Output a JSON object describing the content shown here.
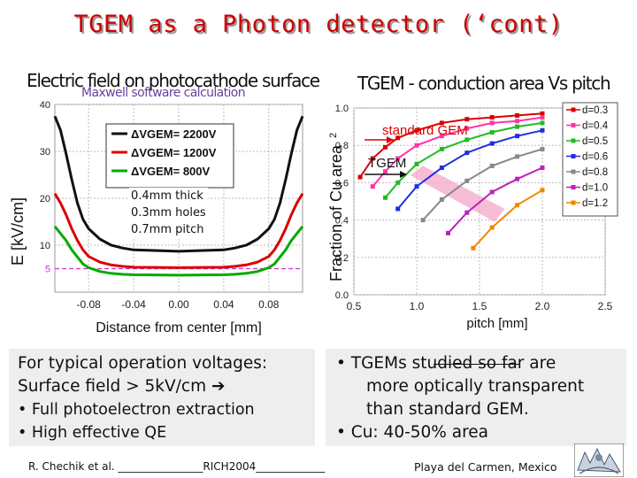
{
  "slide": {
    "title": "TGEM as a Photon detector (‘cont)"
  },
  "left_panel": {
    "title": "Electric field on photocathode surface",
    "subtitle": "Maxwell software calculation",
    "geometry_note": [
      "0.4mm thick",
      "0.3mm holes",
      "0.7mm pitch"
    ],
    "y_marker_label": "5",
    "rotated_ylabel": "E [kV/cm]"
  },
  "right_panel": {
    "title": "TGEM - conduction area Vs pitch",
    "rotated_ylabel": "Fraction of Cu area",
    "exponent_label": "2",
    "annotation_standard": "standard GEM",
    "annotation_tgem": "TGEM"
  },
  "chart_data": [
    {
      "type": "line",
      "title": "Electric field on photocathode surface",
      "xlabel": "Distance from center [mm]",
      "ylabel": "",
      "xlim": [
        -0.11,
        0.11
      ],
      "ylim": [
        0,
        40
      ],
      "xticks": [
        -0.08,
        -0.04,
        0.0,
        0.04,
        0.08
      ],
      "yticks": [
        10,
        20,
        30,
        40
      ],
      "grid": true,
      "legend_position": "top-center",
      "x": [
        -0.11,
        -0.105,
        -0.1,
        -0.095,
        -0.09,
        -0.085,
        -0.08,
        -0.07,
        -0.06,
        -0.05,
        -0.04,
        0.0,
        0.04,
        0.05,
        0.06,
        0.07,
        0.08,
        0.085,
        0.09,
        0.095,
        0.1,
        0.105,
        0.11
      ],
      "series": [
        {
          "name": "ΔVGEM= 2200V",
          "color": "#111111",
          "values": [
            37.5,
            34.5,
            29.5,
            24.0,
            19.0,
            15.5,
            13.5,
            11.3,
            10.0,
            9.4,
            9.0,
            8.7,
            9.0,
            9.4,
            10.0,
            11.3,
            13.5,
            15.5,
            19.0,
            24.0,
            29.5,
            34.5,
            37.5
          ]
        },
        {
          "name": "ΔVGEM= 1200V",
          "color": "#dd0000",
          "values": [
            21.0,
            19.0,
            16.5,
            13.5,
            11.0,
            9.0,
            7.6,
            6.4,
            5.8,
            5.5,
            5.3,
            5.2,
            5.3,
            5.5,
            5.8,
            6.4,
            7.6,
            9.0,
            11.0,
            13.5,
            16.5,
            19.0,
            21.0
          ]
        },
        {
          "name": "ΔVGEM= 800V",
          "color": "#00aa00",
          "values": [
            14.0,
            12.5,
            11.0,
            9.0,
            7.5,
            6.0,
            5.2,
            4.4,
            4.0,
            3.8,
            3.7,
            3.6,
            3.7,
            3.8,
            4.0,
            4.4,
            5.2,
            6.0,
            7.5,
            9.0,
            11.0,
            12.5,
            14.0
          ]
        }
      ]
    },
    {
      "type": "line",
      "title": "TGEM - conduction area Vs pitch",
      "xlabel": "pitch [mm]",
      "ylabel": "",
      "xlim": [
        0.5,
        2.5
      ],
      "ylim": [
        0.0,
        1.0
      ],
      "xticks": [
        0.5,
        1.0,
        1.5,
        2.0,
        2.5
      ],
      "yticks": [
        0.0,
        0.2,
        0.4,
        0.6,
        0.8,
        1.0
      ],
      "grid": true,
      "legend_position": "top-right",
      "series": [
        {
          "name": "d=0.3",
          "color": "#dd0000",
          "x": [
            0.55,
            0.65,
            0.75,
            0.85,
            1.0,
            1.2,
            1.4,
            1.6,
            1.8,
            2.0
          ],
          "values": [
            0.63,
            0.73,
            0.79,
            0.84,
            0.88,
            0.92,
            0.94,
            0.95,
            0.96,
            0.97
          ]
        },
        {
          "name": "d=0.4",
          "color": "#ff33aa",
          "x": [
            0.65,
            0.75,
            0.85,
            1.0,
            1.2,
            1.4,
            1.6,
            1.8,
            2.0
          ],
          "values": [
            0.58,
            0.66,
            0.73,
            0.8,
            0.85,
            0.89,
            0.92,
            0.93,
            0.95
          ]
        },
        {
          "name": "d=0.5",
          "color": "#22bb22",
          "x": [
            0.75,
            0.85,
            1.0,
            1.2,
            1.4,
            1.6,
            1.8,
            2.0
          ],
          "values": [
            0.52,
            0.6,
            0.7,
            0.78,
            0.83,
            0.87,
            0.9,
            0.92
          ]
        },
        {
          "name": "d=0.6",
          "color": "#1f2fe0",
          "x": [
            0.85,
            1.0,
            1.2,
            1.4,
            1.6,
            1.8,
            2.0
          ],
          "values": [
            0.46,
            0.58,
            0.68,
            0.76,
            0.81,
            0.85,
            0.88
          ]
        },
        {
          "name": "d=0.8",
          "color": "#888888",
          "x": [
            1.05,
            1.2,
            1.4,
            1.6,
            1.8,
            2.0
          ],
          "values": [
            0.4,
            0.51,
            0.61,
            0.69,
            0.74,
            0.78
          ]
        },
        {
          "name": "d=1.0",
          "color": "#bb22bb",
          "x": [
            1.25,
            1.4,
            1.6,
            1.8,
            2.0
          ],
          "values": [
            0.33,
            0.44,
            0.55,
            0.62,
            0.68
          ]
        },
        {
          "name": "d=1.2",
          "color": "#ee8800",
          "x": [
            1.45,
            1.6,
            1.8,
            2.0
          ],
          "values": [
            0.25,
            0.36,
            0.48,
            0.56
          ]
        }
      ]
    }
  ],
  "textboxes": {
    "left": [
      "For typical operation voltages:",
      "Surface field > 5kV/cm ➔",
      "• Full photoelectron extraction",
      "• High effective QE"
    ],
    "right": [
      "• TGEMs studied so far are",
      "more optically transparent",
      "than standard GEM.",
      "•  Cu: 40-50% area"
    ]
  },
  "footer": {
    "author": "R. Chechik et al. ________________RICH2004_____________",
    "location": "Playa del Carmen, Mexico"
  },
  "colors": {
    "title": "#cc0000",
    "subtitle": "#6b3fa0",
    "textbox_bg": "#eeeeee",
    "band": "#f4a6c8"
  }
}
